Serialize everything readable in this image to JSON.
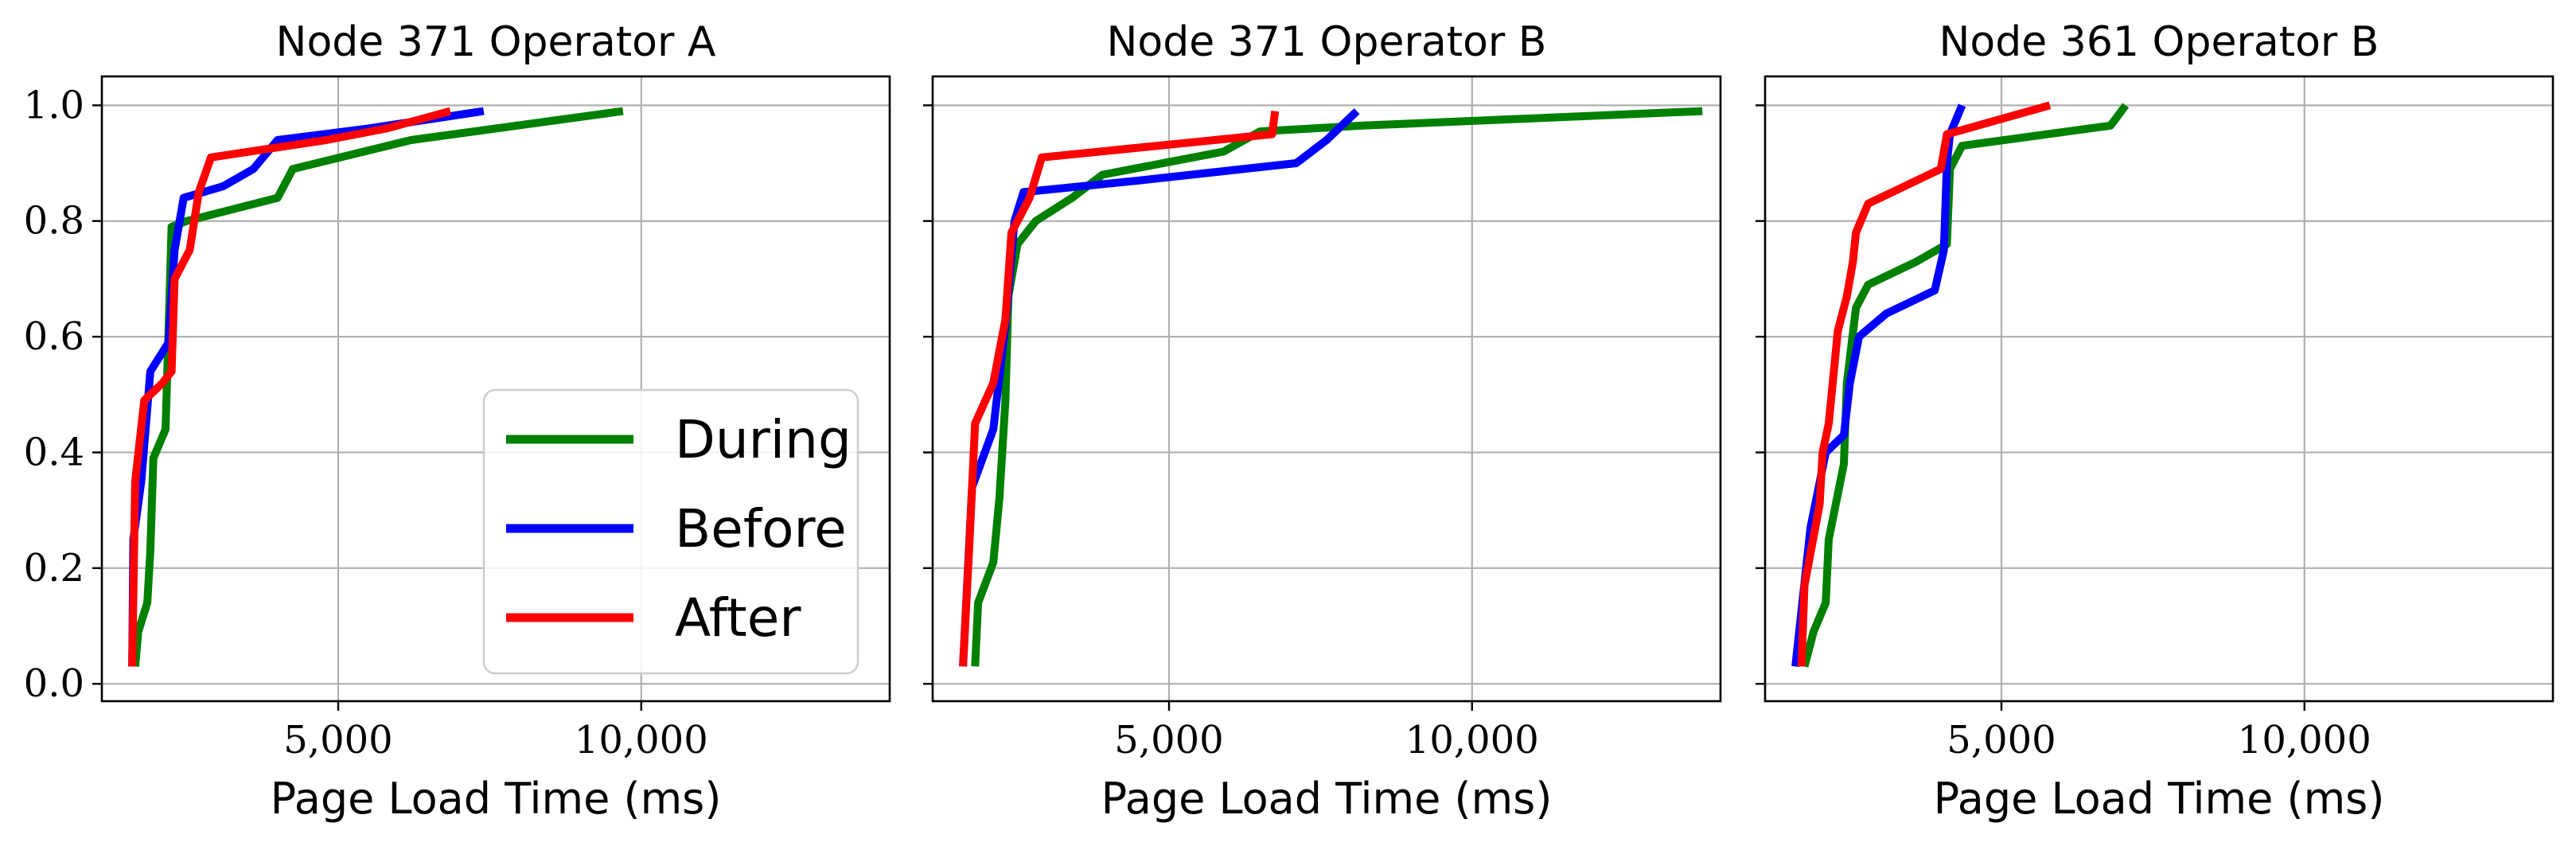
{
  "chart_data": [
    {
      "type": "line",
      "title": "Node 371 Operator A",
      "xlabel": "Page Load Time (ms)",
      "ylabel": "",
      "xlim": [
        1100,
        14100
      ],
      "ylim": [
        -0.03,
        1.05
      ],
      "x_ticks": [
        5000,
        10000
      ],
      "x_tick_labels": [
        "5,000",
        "10,000"
      ],
      "y_ticks": [
        0.0,
        0.2,
        0.4,
        0.6,
        0.8,
        1.0
      ],
      "y_tick_labels": [
        "0.0",
        "0.2",
        "0.4",
        "0.6",
        "0.8",
        "1.0"
      ],
      "grid": true,
      "legend": "lower-right",
      "series": [
        {
          "name": "During",
          "color": "#008000",
          "points": [
            [
              1650,
              0.03
            ],
            [
              1700,
              0.09
            ],
            [
              1850,
              0.14
            ],
            [
              1900,
              0.23
            ],
            [
              1950,
              0.39
            ],
            [
              2150,
              0.44
            ],
            [
              2200,
              0.61
            ],
            [
              2250,
              0.79
            ],
            [
              2500,
              0.8
            ],
            [
              4000,
              0.84
            ],
            [
              4250,
              0.89
            ],
            [
              6200,
              0.94
            ],
            [
              9700,
              0.99
            ]
          ]
        },
        {
          "name": "Before",
          "color": "#0000ff",
          "points": [
            [
              1600,
              0.03
            ],
            [
              1620,
              0.25
            ],
            [
              1750,
              0.35
            ],
            [
              1900,
              0.54
            ],
            [
              2200,
              0.59
            ],
            [
              2300,
              0.75
            ],
            [
              2450,
              0.84
            ],
            [
              3100,
              0.86
            ],
            [
              3600,
              0.89
            ],
            [
              4000,
              0.94
            ],
            [
              5500,
              0.96
            ],
            [
              7400,
              0.99
            ]
          ]
        },
        {
          "name": "After",
          "color": "#ff0000",
          "points": [
            [
              1600,
              0.03
            ],
            [
              1650,
              0.35
            ],
            [
              1800,
              0.49
            ],
            [
              2100,
              0.52
            ],
            [
              2250,
              0.54
            ],
            [
              2300,
              0.7
            ],
            [
              2550,
              0.75
            ],
            [
              2700,
              0.85
            ],
            [
              2900,
              0.91
            ],
            [
              4800,
              0.94
            ],
            [
              5800,
              0.96
            ],
            [
              6850,
              0.99
            ]
          ]
        }
      ]
    },
    {
      "type": "line",
      "title": "Node 371 Operator B",
      "xlabel": "Page Load Time (ms)",
      "ylabel": "",
      "xlim": [
        1100,
        14100
      ],
      "ylim": [
        -0.03,
        1.05
      ],
      "x_ticks": [
        5000,
        10000
      ],
      "x_tick_labels": [
        "5,000",
        "10,000"
      ],
      "y_ticks": [
        0.0,
        0.2,
        0.4,
        0.6,
        0.8,
        1.0
      ],
      "y_tick_labels": [
        "",
        "",
        "",
        "",
        "",
        ""
      ],
      "grid": true,
      "series": [
        {
          "name": "During",
          "color": "#008000",
          "points": [
            [
              1800,
              0.03
            ],
            [
              1850,
              0.14
            ],
            [
              2100,
              0.21
            ],
            [
              2200,
              0.32
            ],
            [
              2300,
              0.49
            ],
            [
              2350,
              0.67
            ],
            [
              2500,
              0.76
            ],
            [
              2800,
              0.8
            ],
            [
              3400,
              0.84
            ],
            [
              3900,
              0.88
            ],
            [
              5900,
              0.92
            ],
            [
              6500,
              0.955
            ],
            [
              8200,
              0.965
            ],
            [
              13800,
              0.99
            ]
          ]
        },
        {
          "name": "Before",
          "color": "#0000ff",
          "points": [
            [
              1600,
              0.03
            ],
            [
              1750,
              0.34
            ],
            [
              2100,
              0.44
            ],
            [
              2300,
              0.62
            ],
            [
              2450,
              0.8
            ],
            [
              2600,
              0.85
            ],
            [
              4500,
              0.87
            ],
            [
              7100,
              0.9
            ],
            [
              7600,
              0.94
            ],
            [
              8100,
              0.99
            ]
          ]
        },
        {
          "name": "After",
          "color": "#ff0000",
          "points": [
            [
              1600,
              0.03
            ],
            [
              1700,
              0.23
            ],
            [
              1800,
              0.45
            ],
            [
              2100,
              0.52
            ],
            [
              2300,
              0.63
            ],
            [
              2400,
              0.78
            ],
            [
              2700,
              0.84
            ],
            [
              2900,
              0.91
            ],
            [
              6700,
              0.95
            ],
            [
              6750,
              0.99
            ]
          ]
        }
      ]
    },
    {
      "type": "line",
      "title": "Node 361 Operator B",
      "xlabel": "Page Load Time (ms)",
      "ylabel": "",
      "xlim": [
        1100,
        14100
      ],
      "ylim": [
        -0.03,
        1.05
      ],
      "x_ticks": [
        5000,
        10000
      ],
      "x_tick_labels": [
        "5,000",
        "10,000"
      ],
      "y_ticks": [
        0.0,
        0.2,
        0.4,
        0.6,
        0.8,
        1.0
      ],
      "y_tick_labels": [
        "",
        "",
        "",
        "",
        "",
        ""
      ],
      "grid": true,
      "series": [
        {
          "name": "During",
          "color": "#008000",
          "points": [
            [
              1750,
              0.03
            ],
            [
              1900,
              0.09
            ],
            [
              2100,
              0.14
            ],
            [
              2150,
              0.25
            ],
            [
              2400,
              0.38
            ],
            [
              2450,
              0.52
            ],
            [
              2600,
              0.65
            ],
            [
              2800,
              0.69
            ],
            [
              3600,
              0.73
            ],
            [
              4100,
              0.76
            ],
            [
              4150,
              0.89
            ],
            [
              4350,
              0.93
            ],
            [
              6800,
              0.965
            ],
            [
              7050,
              1.0
            ]
          ]
        },
        {
          "name": "Before",
          "color": "#0000ff",
          "points": [
            [
              1600,
              0.03
            ],
            [
              1850,
              0.27
            ],
            [
              2100,
              0.4
            ],
            [
              2400,
              0.43
            ],
            [
              2500,
              0.52
            ],
            [
              2650,
              0.6
            ],
            [
              3100,
              0.64
            ],
            [
              3900,
              0.68
            ],
            [
              4050,
              0.75
            ],
            [
              4100,
              0.9
            ],
            [
              4150,
              0.95
            ],
            [
              4350,
              1.0
            ]
          ]
        },
        {
          "name": "After",
          "color": "#ff0000",
          "points": [
            [
              1700,
              0.03
            ],
            [
              1750,
              0.17
            ],
            [
              2000,
              0.31
            ],
            [
              2050,
              0.4
            ],
            [
              2150,
              0.45
            ],
            [
              2300,
              0.61
            ],
            [
              2450,
              0.67
            ],
            [
              2550,
              0.73
            ],
            [
              2600,
              0.78
            ],
            [
              2800,
              0.83
            ],
            [
              4000,
              0.89
            ],
            [
              4100,
              0.95
            ],
            [
              5800,
              1.0
            ]
          ]
        }
      ]
    }
  ]
}
